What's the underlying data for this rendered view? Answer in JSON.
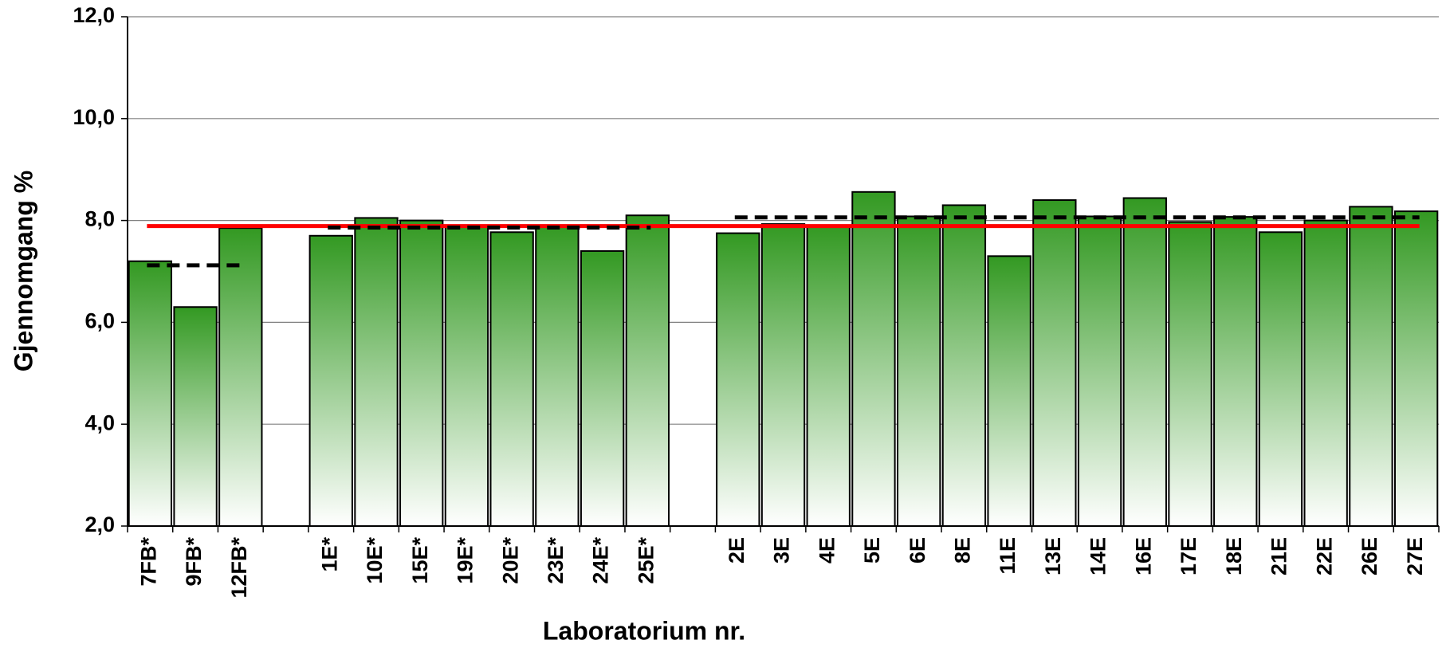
{
  "chart_data": {
    "type": "bar",
    "x_label": "Laboratorium nr.",
    "y_label": "Gjennomgang %",
    "categories": [
      "7FB*",
      "9FB*",
      "12FB*",
      null,
      "1E*",
      "10E*",
      "15E*",
      "19E*",
      "20E*",
      "23E*",
      "24E*",
      "25E*",
      null,
      "2E",
      "3E",
      "4E",
      "5E",
      "6E",
      "8E",
      "11E",
      "13E",
      "14E",
      "16E",
      "17E",
      "18E",
      "21E",
      "22E",
      "26E",
      "27E"
    ],
    "values": [
      7.2,
      6.3,
      7.85,
      null,
      7.7,
      8.05,
      8.0,
      7.9,
      7.77,
      7.9,
      7.4,
      8.1,
      null,
      7.75,
      7.93,
      7.9,
      8.56,
      8.08,
      8.3,
      7.3,
      8.4,
      8.08,
      8.44,
      7.97,
      8.07,
      7.77,
      8.0,
      8.27,
      8.18
    ],
    "color": "#339922",
    "ylim": [
      2,
      12
    ],
    "yticks": [
      {
        "value": 2,
        "label": "2,0"
      },
      {
        "value": 4,
        "label": "4,0"
      },
      {
        "value": 6,
        "label": "6,0"
      },
      {
        "value": 8,
        "label": "8,0"
      },
      {
        "value": 10,
        "label": "10,0"
      },
      {
        "value": 12,
        "label": "12,0"
      }
    ],
    "grid": true,
    "reference_lines": [
      {
        "value": 7.89,
        "color": "#ff0000",
        "style": "solid",
        "from": 0,
        "to": 28
      },
      {
        "value": 7.12,
        "color": "#000000",
        "style": "dashed",
        "from": 0,
        "to": 2
      },
      {
        "value": 7.86,
        "color": "#000000",
        "style": "dashed",
        "from": 4,
        "to": 11
      },
      {
        "value": 8.06,
        "color": "#000000",
        "style": "dashed",
        "from": 13,
        "to": 28
      }
    ]
  }
}
